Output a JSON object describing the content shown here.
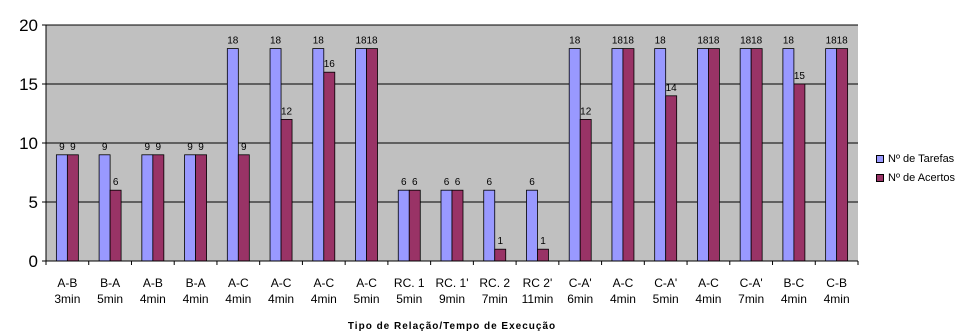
{
  "chart_data": {
    "type": "bar",
    "xlabel": "Tipo de Relação/Tempo de Execução",
    "ylabel": "",
    "ylim": [
      0,
      20
    ],
    "yticks": [
      0,
      5,
      10,
      15,
      20
    ],
    "grid": true,
    "legend_position": "right",
    "categories": [
      [
        "A-B",
        "3min"
      ],
      [
        "B-A",
        "5min"
      ],
      [
        "A-B",
        "4min"
      ],
      [
        "B-A",
        "4min"
      ],
      [
        "A-C",
        "4min"
      ],
      [
        "A-C",
        "4min"
      ],
      [
        "A-C",
        "4min"
      ],
      [
        "A-C",
        "5min"
      ],
      [
        "RC. 1",
        "5min"
      ],
      [
        "RC. 1'",
        "9min"
      ],
      [
        "RC. 2",
        "7min"
      ],
      [
        "RC 2'",
        "11min"
      ],
      [
        "C-A'",
        "6min"
      ],
      [
        "A-C",
        "4min"
      ],
      [
        "C-A'",
        "5min"
      ],
      [
        "A-C",
        "4min"
      ],
      [
        "C-A'",
        "7min"
      ],
      [
        "B-C",
        "4min"
      ],
      [
        "C-B",
        "4min"
      ]
    ],
    "series": [
      {
        "name": "Nº de Tarefas",
        "color": "#9999ff",
        "values": [
          9,
          9,
          9,
          9,
          18,
          18,
          18,
          18,
          6,
          6,
          6,
          6,
          18,
          18,
          18,
          18,
          18,
          18,
          18
        ]
      },
      {
        "name": "Nº de Acertos",
        "color": "#993366",
        "values": [
          9,
          6,
          9,
          9,
          9,
          12,
          16,
          18,
          6,
          6,
          1,
          1,
          12,
          18,
          14,
          18,
          18,
          15,
          18
        ]
      }
    ],
    "plot_background": "#c0c0c0"
  }
}
